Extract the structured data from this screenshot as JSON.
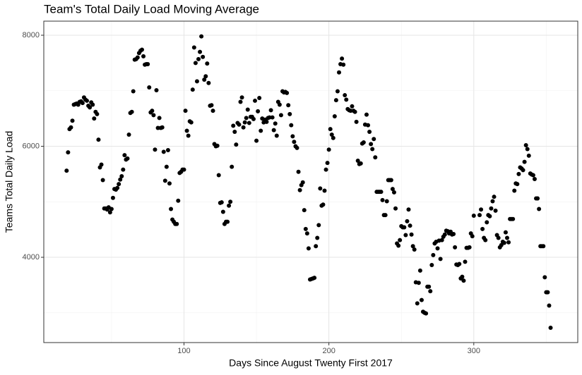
{
  "chart_data": {
    "type": "scatter",
    "title": "Team's Total Daily Load Moving Average",
    "x_label": "Days Since August Twenty First 2017",
    "y_label": "Teams Total Daily Load",
    "color": "#000000",
    "grid": true,
    "xlim": [
      3.25,
      371.75
    ],
    "ylim": [
      2464,
      8254
    ],
    "xticks": [
      100,
      200,
      300
    ],
    "yticks": [
      4000,
      6000,
      8000
    ],
    "xminor": [
      50,
      150,
      250,
      350
    ],
    "yminor": [
      3000,
      5000,
      7000
    ],
    "x": [
      19,
      20,
      21,
      22,
      23,
      24,
      25,
      26,
      27,
      28,
      29,
      30,
      31,
      32,
      33,
      34,
      35,
      36,
      37,
      38,
      39,
      40,
      41,
      42,
      43,
      44,
      45,
      46,
      47,
      48,
      49,
      50,
      51,
      52,
      53,
      54,
      55,
      56,
      57,
      58,
      59,
      60,
      61,
      62,
      63,
      64,
      65,
      66,
      67,
      68,
      69,
      70,
      71,
      72,
      73,
      74,
      75,
      76,
      77,
      78,
      79,
      80,
      81,
      82,
      83,
      84,
      85,
      86,
      87,
      88,
      89,
      90,
      91,
      92,
      93,
      94,
      95,
      96,
      97,
      98,
      99,
      100,
      101,
      102,
      103,
      104,
      105,
      106,
      107,
      108,
      109,
      110,
      111,
      112,
      113,
      114,
      115,
      116,
      117,
      118,
      119,
      120,
      121,
      122,
      123,
      124,
      125,
      126,
      127,
      128,
      129,
      130,
      131,
      132,
      133,
      134,
      135,
      136,
      137,
      138,
      139,
      140,
      141,
      142,
      143,
      144,
      145,
      146,
      147,
      148,
      149,
      150,
      151,
      152,
      153,
      154,
      155,
      156,
      157,
      158,
      159,
      160,
      161,
      162,
      163,
      164,
      165,
      166,
      167,
      168,
      169,
      170,
      171,
      172,
      173,
      174,
      175,
      176,
      177,
      178,
      179,
      180,
      181,
      182,
      183,
      184,
      185,
      186,
      187,
      188,
      189,
      190,
      191,
      192,
      193,
      194,
      195,
      196,
      197,
      198,
      199,
      200,
      201,
      202,
      203,
      204,
      205,
      206,
      207,
      208,
      209,
      210,
      211,
      212,
      213,
      214,
      215,
      216,
      217,
      218,
      219,
      220,
      221,
      222,
      223,
      224,
      225,
      226,
      227,
      228,
      229,
      230,
      231,
      232,
      233,
      234,
      235,
      236,
      237,
      238,
      239,
      240,
      241,
      242,
      243,
      244,
      245,
      246,
      247,
      248,
      249,
      250,
      251,
      252,
      253,
      254,
      255,
      256,
      257,
      258,
      259,
      260,
      261,
      262,
      263,
      264,
      265,
      266,
      267,
      268,
      269,
      270,
      271,
      272,
      273,
      274,
      275,
      276,
      277,
      278,
      279,
      280,
      281,
      282,
      283,
      284,
      285,
      286,
      287,
      288,
      289,
      290,
      291,
      292,
      293,
      294,
      295,
      296,
      297,
      298,
      299,
      300,
      304,
      305,
      306,
      307,
      308,
      309,
      310,
      311,
      312,
      313,
      314,
      315,
      316,
      317,
      318,
      319,
      320,
      321,
      322,
      323,
      324,
      325,
      326,
      327,
      328,
      329,
      330,
      331,
      332,
      333,
      334,
      335,
      336,
      337,
      338,
      339,
      340,
      341,
      342,
      343,
      344,
      345,
      346,
      347,
      348,
      349,
      350,
      351,
      352,
      353
    ],
    "values": [
      5560,
      5890,
      6310,
      6340,
      6460,
      6750,
      6760,
      6770,
      6750,
      6800,
      6810,
      6780,
      6880,
      6840,
      6820,
      6730,
      6700,
      6790,
      6750,
      6500,
      6620,
      6580,
      6120,
      5620,
      5670,
      5390,
      4880,
      4880,
      4860,
      4900,
      4810,
      4870,
      5070,
      5230,
      5220,
      5250,
      5320,
      5400,
      5460,
      5580,
      5840,
      5760,
      5780,
      6210,
      6600,
      6620,
      6990,
      7560,
      7570,
      7600,
      7680,
      7720,
      7740,
      7620,
      7470,
      7480,
      7480,
      7060,
      6610,
      6640,
      6560,
      5940,
      7010,
      6330,
      6510,
      6330,
      6340,
      5900,
      5380,
      5630,
      5930,
      5330,
      4870,
      4680,
      4640,
      4600,
      4600,
      5020,
      5520,
      5540,
      5580,
      5580,
      6640,
      6280,
      6190,
      6450,
      6430,
      7020,
      7780,
      7500,
      7170,
      7570,
      7700,
      7980,
      7610,
      7200,
      7260,
      7490,
      7140,
      6730,
      6740,
      6640,
      6040,
      6000,
      6010,
      5480,
      4980,
      4990,
      4820,
      4600,
      4640,
      4640,
      4930,
      5000,
      5630,
      6370,
      6260,
      6030,
      6420,
      6390,
      6800,
      6880,
      6340,
      6430,
      6510,
      6660,
      6420,
      6530,
      6530,
      6490,
      6820,
      6100,
      6630,
      6870,
      6280,
      6500,
      6430,
      6480,
      6440,
      6510,
      6520,
      6650,
      6520,
      6290,
      6410,
      6190,
      6800,
      6750,
      6560,
      6990,
      6970,
      6980,
      6960,
      6740,
      6580,
      6380,
      6180,
      6080,
      6000,
      5970,
      5540,
      5210,
      5300,
      5350,
      4850,
      4510,
      4430,
      4160,
      3600,
      3610,
      3620,
      3630,
      4200,
      4350,
      4580,
      5240,
      4930,
      4950,
      5200,
      5580,
      5700,
      5940,
      6310,
      6210,
      6150,
      6540,
      6830,
      6990,
      7330,
      7480,
      7580,
      7470,
      6920,
      6840,
      6670,
      6650,
      6640,
      6720,
      6640,
      6620,
      6440,
      5740,
      5680,
      5690,
      6050,
      6070,
      6390,
      6570,
      6380,
      6260,
      6040,
      5950,
      6130,
      5800,
      5180,
      5180,
      5180,
      5180,
      5030,
      4760,
      4760,
      5010,
      5390,
      5390,
      5390,
      5230,
      5170,
      4880,
      4250,
      4210,
      4310,
      4560,
      4540,
      4540,
      4400,
      4650,
      4860,
      4570,
      4410,
      4200,
      4140,
      3550,
      3170,
      3540,
      3760,
      3230,
      3020,
      3000,
      2990,
      3470,
      3470,
      3390,
      3860,
      4040,
      4250,
      4280,
      4160,
      4300,
      3970,
      4310,
      4370,
      4410,
      4480,
      4470,
      4430,
      4460,
      4410,
      4420,
      4180,
      3870,
      3860,
      3880,
      3620,
      3650,
      3580,
      3920,
      4170,
      4170,
      4180,
      4430,
      4380,
      4750,
      4760,
      4860,
      4510,
      4350,
      4310,
      4630,
      4760,
      4740,
      4880,
      5010,
      5090,
      4840,
      4400,
      4350,
      4180,
      4220,
      4280,
      4260,
      4450,
      4350,
      4270,
      4690,
      4690,
      4690,
      5200,
      5330,
      5320,
      5500,
      5620,
      5600,
      5570,
      5720,
      6020,
      5950,
      5830,
      5510,
      5490,
      5480,
      5410,
      5060,
      5060,
      4870,
      4200,
      4200,
      4200,
      3640,
      3370,
      3370,
      3130,
      2730
    ]
  }
}
